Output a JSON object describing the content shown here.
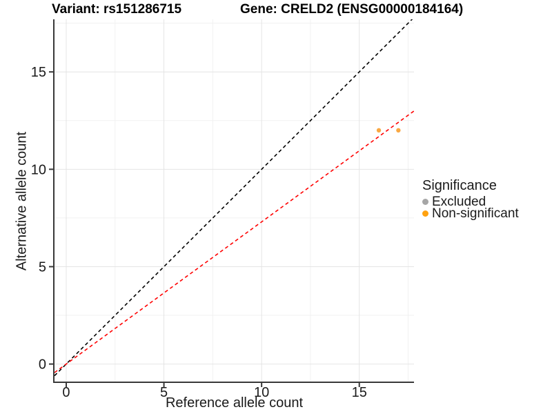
{
  "chart_data": {
    "type": "scatter",
    "title_left": "Variant: rs151286715",
    "title_right": "Gene: CRELD2 (ENSG00000184164)",
    "xlabel": "Reference allele count",
    "ylabel": "Alternative allele count",
    "xlim": [
      -0.6,
      17.8
    ],
    "ylim": [
      -0.9,
      17.7
    ],
    "xticks": [
      0,
      5,
      10,
      15
    ],
    "yticks": [
      0,
      5,
      10,
      15
    ],
    "x_minor_ticks": [
      2.5,
      7.5,
      12.5,
      17.5
    ],
    "y_minor_ticks": [
      2.5,
      7.5,
      12.5,
      17.5
    ],
    "grid": "major+minor",
    "series": [
      {
        "name": "Non-significant",
        "color": "#F9A843",
        "points": [
          {
            "x": 16,
            "y": 12
          },
          {
            "x": 17,
            "y": 12
          }
        ]
      },
      {
        "name": "Excluded",
        "color": "#A6A6A6",
        "points": []
      }
    ],
    "reference_lines": [
      {
        "name": "identity-line",
        "slope": 1,
        "intercept": 0,
        "color": "#000000",
        "style": "dashed"
      },
      {
        "name": "expected-ratio-line",
        "slope": 0.73,
        "intercept": 0,
        "color": "#FF0000",
        "style": "dashed"
      }
    ],
    "legend": {
      "title": "Significance",
      "position": "right",
      "items": [
        {
          "label": "Excluded",
          "color": "#A6A6A6"
        },
        {
          "label": "Non-significant",
          "color": "#FFA210"
        }
      ]
    },
    "colors": {
      "axis_line": "#383838",
      "tick_text": "#1a1a1a",
      "grid_major": "#E4E4E4",
      "grid_minor": "#F1F1F1"
    }
  }
}
